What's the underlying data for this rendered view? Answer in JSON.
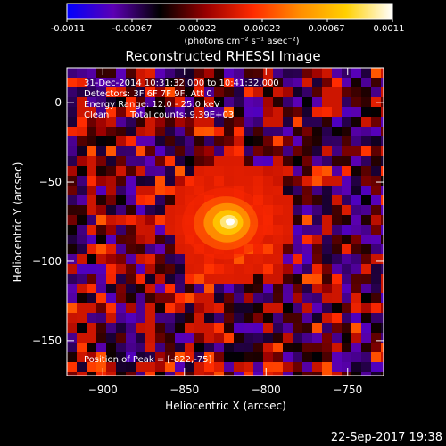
{
  "colorbar": {
    "ticks": [
      "-0.0011",
      "-0.00067",
      "-0.00022",
      "0.00022",
      "0.00067",
      "0.0011"
    ],
    "units_label": "(photons cm⁻² s⁻¹ asec⁻²)",
    "colors": [
      "#0000ff",
      "#5c00b4",
      "#000000",
      "#9a0000",
      "#ff2a00",
      "#ff8c00",
      "#ffd000",
      "#ffffff"
    ]
  },
  "annotations": {
    "time_range": "31-Dec-2014 10:31:32.000 to 10:41:32.000",
    "detectors": "Detectors: 3F 6F 7F 9F, Att 0",
    "energy_range": "Energy Range: 12.0 - 25.0 keV",
    "clean_label": "Clean",
    "total_counts": "Total counts: 9.39E+03",
    "peak_position": "Position of Peak = [-822,-75]"
  },
  "footer": {
    "timestamp": "22-Sep-2017 19:38"
  },
  "chart_data": {
    "type": "heatmap",
    "title": "Reconstructed RHESSI Image",
    "xlabel": "Heliocentric X (arcsec)",
    "ylabel": "Heliocentric Y (arcsec)",
    "xlim": [
      -922,
      -728
    ],
    "ylim": [
      -172,
      22
    ],
    "xticks": [
      -900,
      -850,
      -800,
      -750
    ],
    "yticks": [
      0,
      -50,
      -100,
      -150
    ],
    "value_range": [
      -0.0011,
      0.0011
    ],
    "peak": {
      "x": -822,
      "y": -75
    }
  }
}
